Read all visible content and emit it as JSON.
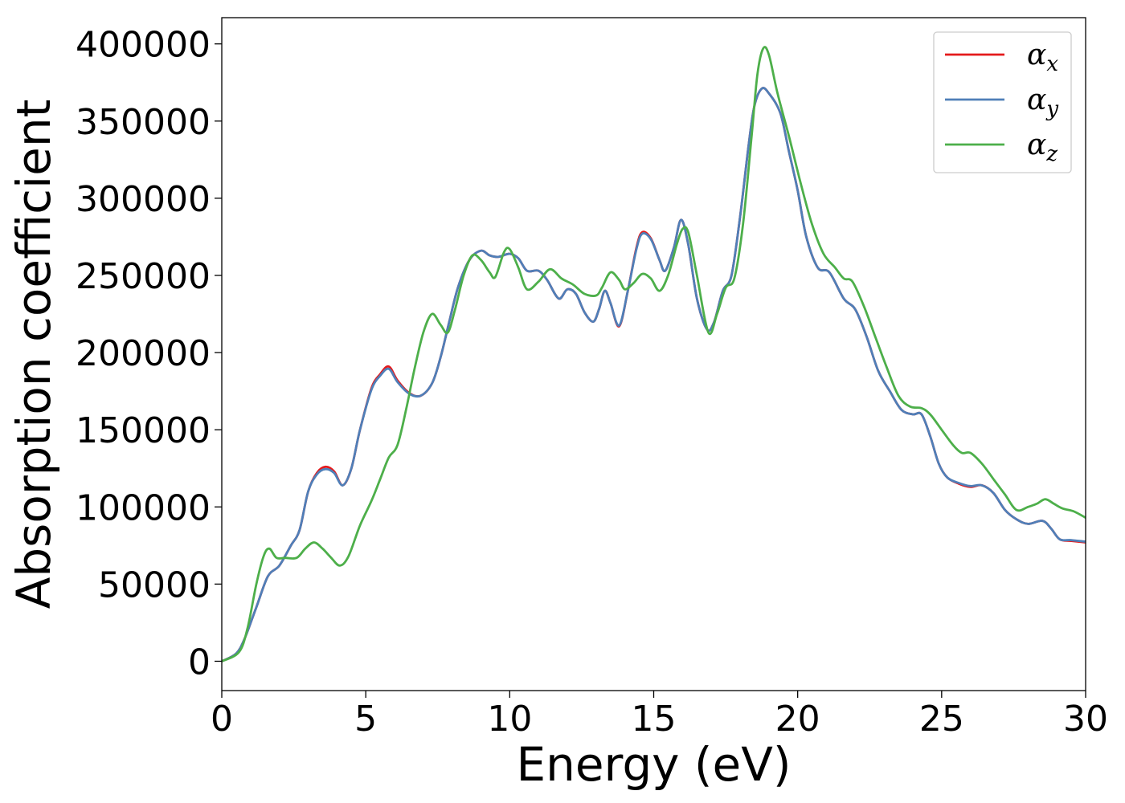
{
  "chart_data": {
    "type": "line",
    "xlabel": "Energy (eV)",
    "ylabel": "Absorption coefficient",
    "xlim": [
      0,
      30
    ],
    "ylim": [
      -19000,
      417000
    ],
    "xticks": [
      0,
      5,
      10,
      15,
      20,
      25,
      30
    ],
    "yticks": [
      0,
      50000,
      100000,
      150000,
      200000,
      250000,
      300000,
      350000,
      400000
    ],
    "xtick_labels": [
      "0",
      "5",
      "10",
      "15",
      "20",
      "25",
      "30"
    ],
    "ytick_labels": [
      "0",
      "50000",
      "100000",
      "150000",
      "200000",
      "250000",
      "300000",
      "350000",
      "400000"
    ],
    "grid": false,
    "legend_position": "top-right",
    "series": [
      {
        "name": "α",
        "subscript": "x",
        "color": "#e41a1c",
        "points": [
          [
            0,
            0
          ],
          [
            0.5,
            5000
          ],
          [
            0.8,
            15000
          ],
          [
            1.2,
            35000
          ],
          [
            1.6,
            55000
          ],
          [
            2.0,
            62000
          ],
          [
            2.4,
            75000
          ],
          [
            2.7,
            85000
          ],
          [
            3.0,
            110000
          ],
          [
            3.3,
            122000
          ],
          [
            3.6,
            126000
          ],
          [
            3.9,
            123000
          ],
          [
            4.2,
            114000
          ],
          [
            4.5,
            125000
          ],
          [
            4.8,
            150000
          ],
          [
            5.2,
            177000
          ],
          [
            5.5,
            186000
          ],
          [
            5.8,
            191000
          ],
          [
            6.1,
            182000
          ],
          [
            6.5,
            174000
          ],
          [
            6.9,
            172000
          ],
          [
            7.3,
            180000
          ],
          [
            7.6,
            197000
          ],
          [
            7.9,
            220000
          ],
          [
            8.2,
            242000
          ],
          [
            8.6,
            260000
          ],
          [
            9.0,
            266000
          ],
          [
            9.3,
            263000
          ],
          [
            9.6,
            262000
          ],
          [
            10.0,
            264000
          ],
          [
            10.3,
            261000
          ],
          [
            10.6,
            253000
          ],
          [
            11.0,
            253000
          ],
          [
            11.3,
            247000
          ],
          [
            11.7,
            235000
          ],
          [
            12.0,
            241000
          ],
          [
            12.3,
            238000
          ],
          [
            12.6,
            226000
          ],
          [
            12.9,
            220000
          ],
          [
            13.1,
            228000
          ],
          [
            13.3,
            240000
          ],
          [
            13.5,
            232000
          ],
          [
            13.8,
            217000
          ],
          [
            14.1,
            240000
          ],
          [
            14.4,
            268000
          ],
          [
            14.6,
            278000
          ],
          [
            14.9,
            274000
          ],
          [
            15.2,
            260000
          ],
          [
            15.4,
            253000
          ],
          [
            15.7,
            268000
          ],
          [
            15.95,
            286000
          ],
          [
            16.2,
            270000
          ],
          [
            16.5,
            235000
          ],
          [
            16.85,
            215000
          ],
          [
            17.1,
            220000
          ],
          [
            17.4,
            240000
          ],
          [
            17.7,
            250000
          ],
          [
            18.0,
            288000
          ],
          [
            18.3,
            335000
          ],
          [
            18.5,
            360000
          ],
          [
            18.75,
            371000
          ],
          [
            19.0,
            368000
          ],
          [
            19.4,
            355000
          ],
          [
            19.7,
            330000
          ],
          [
            20.0,
            305000
          ],
          [
            20.3,
            275000
          ],
          [
            20.7,
            255000
          ],
          [
            21.1,
            252000
          ],
          [
            21.6,
            235000
          ],
          [
            22.0,
            228000
          ],
          [
            22.4,
            210000
          ],
          [
            22.8,
            188000
          ],
          [
            23.2,
            175000
          ],
          [
            23.6,
            163000
          ],
          [
            24.0,
            160000
          ],
          [
            24.3,
            160000
          ],
          [
            24.6,
            146000
          ],
          [
            24.9,
            128000
          ],
          [
            25.2,
            119000
          ],
          [
            25.6,
            115000
          ],
          [
            26.0,
            113000
          ],
          [
            26.4,
            114000
          ],
          [
            26.8,
            109000
          ],
          [
            27.2,
            98000
          ],
          [
            27.6,
            92000
          ],
          [
            28.0,
            89000
          ],
          [
            28.5,
            91000
          ],
          [
            28.8,
            86000
          ],
          [
            29.1,
            79000
          ],
          [
            29.5,
            78000
          ],
          [
            30.0,
            77000
          ]
        ]
      },
      {
        "name": "α",
        "subscript": "y",
        "color": "#4f7fb8",
        "points": [
          [
            0,
            0
          ],
          [
            0.5,
            5000
          ],
          [
            0.8,
            15000
          ],
          [
            1.2,
            35000
          ],
          [
            1.6,
            55000
          ],
          [
            2.0,
            62000
          ],
          [
            2.4,
            75000
          ],
          [
            2.7,
            85000
          ],
          [
            3.0,
            110000
          ],
          [
            3.3,
            121000
          ],
          [
            3.6,
            124500
          ],
          [
            3.9,
            122000
          ],
          [
            4.2,
            114000
          ],
          [
            4.5,
            125000
          ],
          [
            4.8,
            150000
          ],
          [
            5.2,
            176000
          ],
          [
            5.5,
            185000
          ],
          [
            5.8,
            189500
          ],
          [
            6.1,
            181000
          ],
          [
            6.5,
            173500
          ],
          [
            6.9,
            172000
          ],
          [
            7.3,
            180000
          ],
          [
            7.6,
            197000
          ],
          [
            7.9,
            220000
          ],
          [
            8.2,
            242000
          ],
          [
            8.6,
            260000
          ],
          [
            9.0,
            266000
          ],
          [
            9.3,
            263000
          ],
          [
            9.6,
            262000
          ],
          [
            10.0,
            264000
          ],
          [
            10.3,
            261000
          ],
          [
            10.6,
            253000
          ],
          [
            11.0,
            253000
          ],
          [
            11.3,
            247000
          ],
          [
            11.7,
            235000
          ],
          [
            12.0,
            241000
          ],
          [
            12.3,
            238000
          ],
          [
            12.6,
            226000
          ],
          [
            12.9,
            220000
          ],
          [
            13.1,
            228000
          ],
          [
            13.3,
            240000
          ],
          [
            13.5,
            232000
          ],
          [
            13.8,
            217500
          ],
          [
            14.1,
            240000
          ],
          [
            14.4,
            267000
          ],
          [
            14.6,
            277000
          ],
          [
            14.9,
            273500
          ],
          [
            15.2,
            260000
          ],
          [
            15.4,
            253000
          ],
          [
            15.7,
            268000
          ],
          [
            15.95,
            286000
          ],
          [
            16.2,
            270000
          ],
          [
            16.5,
            235000
          ],
          [
            16.85,
            215000
          ],
          [
            17.1,
            220000
          ],
          [
            17.4,
            240000
          ],
          [
            17.7,
            250000
          ],
          [
            18.0,
            288000
          ],
          [
            18.3,
            335000
          ],
          [
            18.5,
            360000
          ],
          [
            18.75,
            371000
          ],
          [
            19.0,
            368000
          ],
          [
            19.4,
            355000
          ],
          [
            19.7,
            330000
          ],
          [
            20.0,
            305000
          ],
          [
            20.3,
            275000
          ],
          [
            20.7,
            255000
          ],
          [
            21.1,
            252000
          ],
          [
            21.6,
            235000
          ],
          [
            22.0,
            228000
          ],
          [
            22.4,
            210000
          ],
          [
            22.8,
            188000
          ],
          [
            23.2,
            175000
          ],
          [
            23.6,
            163000
          ],
          [
            24.0,
            160000
          ],
          [
            24.3,
            160000
          ],
          [
            24.6,
            146000
          ],
          [
            24.9,
            128000
          ],
          [
            25.2,
            119000
          ],
          [
            25.6,
            115500
          ],
          [
            26.0,
            113500
          ],
          [
            26.4,
            114000
          ],
          [
            26.8,
            109000
          ],
          [
            27.2,
            98000
          ],
          [
            27.6,
            92000
          ],
          [
            28.0,
            89000
          ],
          [
            28.5,
            91000
          ],
          [
            28.8,
            86000
          ],
          [
            29.1,
            79000
          ],
          [
            29.5,
            78500
          ],
          [
            30.0,
            77500
          ]
        ]
      },
      {
        "name": "α",
        "subscript": "z",
        "color": "#4daf4a",
        "points": [
          [
            0,
            0
          ],
          [
            0.6,
            6000
          ],
          [
            0.9,
            22000
          ],
          [
            1.2,
            50000
          ],
          [
            1.45,
            68000
          ],
          [
            1.65,
            73000
          ],
          [
            1.9,
            67000
          ],
          [
            2.2,
            67000
          ],
          [
            2.6,
            67000
          ],
          [
            2.9,
            73000
          ],
          [
            3.2,
            77000
          ],
          [
            3.5,
            73000
          ],
          [
            3.8,
            67000
          ],
          [
            4.1,
            62000
          ],
          [
            4.4,
            68000
          ],
          [
            4.8,
            88000
          ],
          [
            5.2,
            104000
          ],
          [
            5.5,
            118000
          ],
          [
            5.8,
            132000
          ],
          [
            6.1,
            140000
          ],
          [
            6.4,
            163000
          ],
          [
            6.7,
            190000
          ],
          [
            7.0,
            213000
          ],
          [
            7.3,
            225000
          ],
          [
            7.6,
            218000
          ],
          [
            7.85,
            213000
          ],
          [
            8.1,
            228000
          ],
          [
            8.4,
            250000
          ],
          [
            8.7,
            263000
          ],
          [
            9.0,
            260000
          ],
          [
            9.3,
            252000
          ],
          [
            9.5,
            249000
          ],
          [
            9.8,
            265000
          ],
          [
            10.0,
            267000
          ],
          [
            10.3,
            255000
          ],
          [
            10.6,
            241000
          ],
          [
            11.0,
            246000
          ],
          [
            11.4,
            254000
          ],
          [
            11.8,
            248000
          ],
          [
            12.2,
            244000
          ],
          [
            12.6,
            238000
          ],
          [
            13.0,
            237000
          ],
          [
            13.2,
            242000
          ],
          [
            13.5,
            252000
          ],
          [
            13.8,
            247000
          ],
          [
            14.0,
            241000
          ],
          [
            14.3,
            245000
          ],
          [
            14.6,
            251000
          ],
          [
            14.9,
            248000
          ],
          [
            15.2,
            240000
          ],
          [
            15.5,
            250000
          ],
          [
            15.8,
            270000
          ],
          [
            16.0,
            280000
          ],
          [
            16.2,
            278000
          ],
          [
            16.5,
            250000
          ],
          [
            16.9,
            213000
          ],
          [
            17.2,
            225000
          ],
          [
            17.5,
            242000
          ],
          [
            17.8,
            248000
          ],
          [
            18.1,
            283000
          ],
          [
            18.4,
            340000
          ],
          [
            18.6,
            380000
          ],
          [
            18.8,
            397000
          ],
          [
            19.0,
            393000
          ],
          [
            19.3,
            368000
          ],
          [
            19.7,
            340000
          ],
          [
            20.1,
            310000
          ],
          [
            20.5,
            283000
          ],
          [
            20.9,
            264000
          ],
          [
            21.3,
            255000
          ],
          [
            21.6,
            248000
          ],
          [
            21.9,
            246000
          ],
          [
            22.3,
            230000
          ],
          [
            22.7,
            210000
          ],
          [
            23.1,
            190000
          ],
          [
            23.5,
            172000
          ],
          [
            23.9,
            165000
          ],
          [
            24.3,
            164000
          ],
          [
            24.6,
            160000
          ],
          [
            25.0,
            150000
          ],
          [
            25.4,
            140000
          ],
          [
            25.7,
            135000
          ],
          [
            26.0,
            135000
          ],
          [
            26.4,
            128000
          ],
          [
            26.8,
            118000
          ],
          [
            27.2,
            108000
          ],
          [
            27.6,
            98000
          ],
          [
            28.0,
            100000
          ],
          [
            28.3,
            102000
          ],
          [
            28.6,
            105000
          ],
          [
            28.9,
            102000
          ],
          [
            29.2,
            99000
          ],
          [
            29.6,
            97000
          ],
          [
            30.0,
            93000
          ]
        ]
      }
    ]
  }
}
